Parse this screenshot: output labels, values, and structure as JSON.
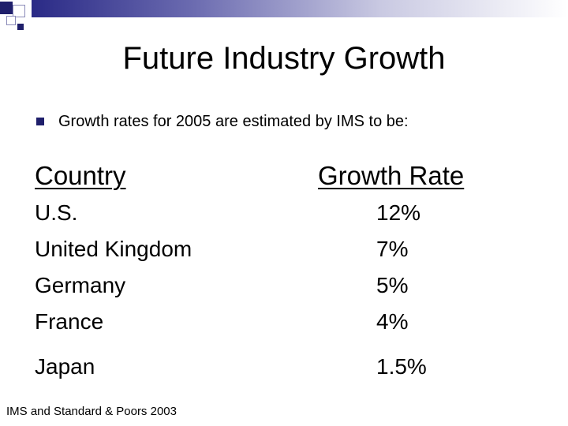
{
  "title": "Future Industry Growth",
  "bullet": "Growth rates for 2005 are estimated by IMS to be:",
  "headers": {
    "country": "Country",
    "rate": "Growth Rate"
  },
  "rows": [
    {
      "country": "U.S.",
      "rate": "12%"
    },
    {
      "country": "United Kingdom",
      "rate": "7%"
    },
    {
      "country": "Germany",
      "rate": "5%"
    },
    {
      "country": "France",
      "rate": "4%"
    },
    {
      "country": "Japan",
      "rate": "1.5%"
    }
  ],
  "source": "IMS and Standard & Poors 2003",
  "colors": {
    "accent": "#1f1f6b",
    "text": "#000000",
    "background": "#ffffff"
  }
}
